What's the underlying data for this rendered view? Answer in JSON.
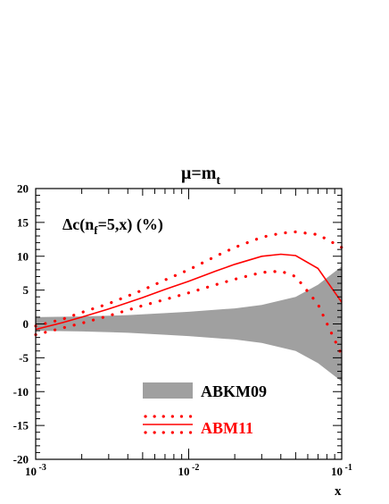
{
  "chart_data": {
    "type": "line",
    "title": "μ=m_t",
    "annotation": "Δc(n_f=5,x) (%)",
    "xlabel": "x",
    "ylabel": "",
    "x_scale": "log",
    "xlim": [
      0.001,
      0.1
    ],
    "ylim": [
      -20,
      20
    ],
    "x_ticks": [
      {
        "base": "10",
        "exp": "-3"
      },
      {
        "base": "10",
        "exp": "-2"
      },
      {
        "base": "10",
        "exp": "-1"
      }
    ],
    "y_ticks": [
      "20",
      "15",
      "10",
      "5",
      "0",
      "-5",
      "-10",
      "-15",
      "-20"
    ],
    "grid": false,
    "legend_position": "bottom-right",
    "series": [
      {
        "name": "ABKM09",
        "style": "band",
        "color": "#a0a0a0",
        "x": [
          0.001,
          0.002,
          0.004,
          0.007,
          0.01,
          0.02,
          0.03,
          0.05,
          0.07,
          0.1
        ],
        "upper": [
          1.0,
          1.1,
          1.3,
          1.6,
          1.8,
          2.3,
          2.8,
          4.0,
          5.8,
          8.5
        ],
        "lower": [
          -1.0,
          -1.1,
          -1.3,
          -1.6,
          -1.8,
          -2.3,
          -2.8,
          -4.0,
          -5.8,
          -8.5
        ]
      },
      {
        "name": "ABM11",
        "style": "line_with_dotted_bounds",
        "color": "#ff0000",
        "x": [
          0.001,
          0.0015,
          0.002,
          0.003,
          0.005,
          0.007,
          0.01,
          0.015,
          0.02,
          0.03,
          0.04,
          0.05,
          0.07,
          0.1
        ],
        "central": [
          -0.8,
          0.2,
          1.0,
          2.2,
          3.9,
          5.1,
          6.3,
          7.8,
          8.8,
          10.0,
          10.3,
          10.1,
          8.2,
          3.2
        ],
        "upper": [
          -0.3,
          0.7,
          1.7,
          3.0,
          5.0,
          6.5,
          8.0,
          10.0,
          11.3,
          12.8,
          13.4,
          13.6,
          13.2,
          11.3
        ],
        "lower": [
          -1.6,
          -0.6,
          0.1,
          1.2,
          2.7,
          3.6,
          4.6,
          5.8,
          6.6,
          7.6,
          7.8,
          7.0,
          2.9,
          -4.6
        ]
      }
    ]
  }
}
